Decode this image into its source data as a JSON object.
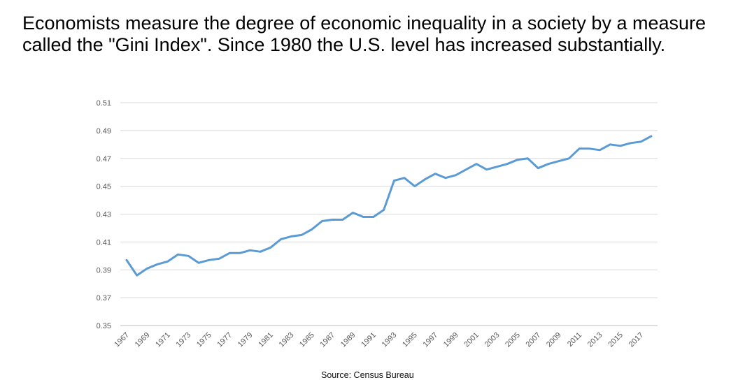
{
  "slide": {
    "text": "Economists measure the degree of economic inequality in a society by a measure called the \"Gini Index\".  Since 1980 the U.S. level has increased substantially."
  },
  "source": "Source: Census Bureau",
  "chart_data": {
    "type": "line",
    "title": "",
    "xlabel": "",
    "ylabel": "",
    "ylim": [
      0.35,
      0.51
    ],
    "yticks": [
      "0.35",
      "0.37",
      "0.39",
      "0.41",
      "0.43",
      "0.45",
      "0.47",
      "0.49",
      "0.51"
    ],
    "x_tick_labels": [
      "1967",
      "1969",
      "1971",
      "1973",
      "1975",
      "1977",
      "1979",
      "1981",
      "1983",
      "1985",
      "1987",
      "1989",
      "1991",
      "1993",
      "1995",
      "1997",
      "1999",
      "2001",
      "2003",
      "2005",
      "2007",
      "2009",
      "2011",
      "2013",
      "2015",
      "2017"
    ],
    "grid": true,
    "line_color": "#5b9bd5",
    "series": [
      {
        "name": "Gini Index",
        "x": [
          1967,
          1968,
          1969,
          1970,
          1971,
          1972,
          1973,
          1974,
          1975,
          1976,
          1977,
          1978,
          1979,
          1980,
          1981,
          1982,
          1983,
          1984,
          1985,
          1986,
          1987,
          1988,
          1989,
          1990,
          1991,
          1992,
          1993,
          1994,
          1995,
          1996,
          1997,
          1998,
          1999,
          2000,
          2001,
          2002,
          2003,
          2004,
          2005,
          2006,
          2007,
          2008,
          2009,
          2010,
          2011,
          2012,
          2013,
          2014,
          2015,
          2016,
          2017,
          2018
        ],
        "values": [
          0.397,
          0.386,
          0.391,
          0.394,
          0.396,
          0.401,
          0.4,
          0.395,
          0.397,
          0.398,
          0.402,
          0.402,
          0.404,
          0.403,
          0.406,
          0.412,
          0.414,
          0.415,
          0.419,
          0.425,
          0.426,
          0.426,
          0.431,
          0.428,
          0.428,
          0.433,
          0.454,
          0.456,
          0.45,
          0.455,
          0.459,
          0.456,
          0.458,
          0.462,
          0.466,
          0.462,
          0.464,
          0.466,
          0.469,
          0.47,
          0.463,
          0.466,
          0.468,
          0.47,
          0.477,
          0.477,
          0.476,
          0.48,
          0.479,
          0.481,
          0.482,
          0.486
        ]
      }
    ]
  }
}
